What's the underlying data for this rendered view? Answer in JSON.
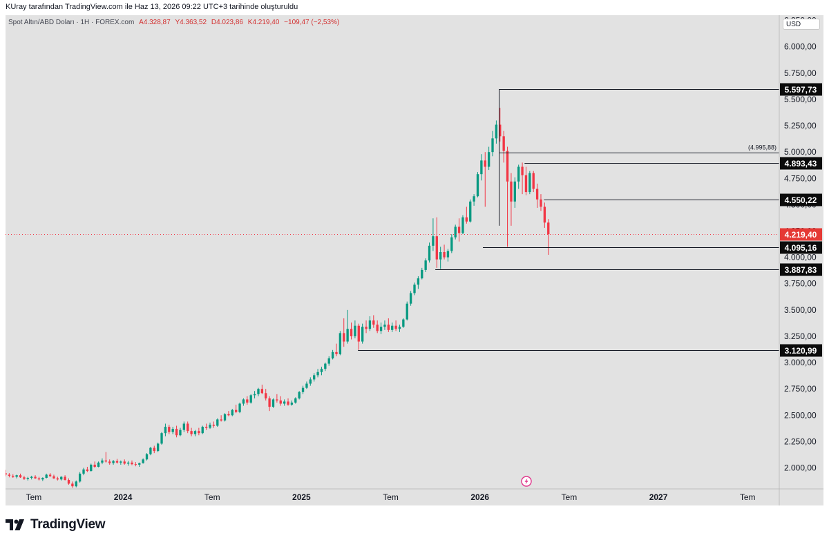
{
  "header": {
    "caption": "KUray tarafından TradingView.com ile Haz 13, 2026 09:22 UTC+3 tarihinde oluşturuldu"
  },
  "legend": {
    "symbol": "Spot Altın/ABD Doları · 1H · FOREX.com",
    "open": "A4.328,87",
    "high": "Y4.363,52",
    "low": "D4.023,86",
    "close": "K4.219,40",
    "change": "−109,47 (−2,53%)"
  },
  "currency_button": "USD",
  "brand": {
    "name": "TradingView",
    "icon": "tradingview-logo-icon"
  },
  "markers": {
    "icon": "lightning-event-icon"
  },
  "colors": {
    "up": "#089981",
    "down": "#f23645",
    "background": "#e2e2e2",
    "last_price_label": "#e53935",
    "level_label": "#0b0b0b"
  },
  "chart_data": {
    "type": "candlestick",
    "symbol": "Spot Altın/ABD Doları",
    "interval": "1H",
    "source": "FOREX.com",
    "y_axis": {
      "range": [
        1800,
        6300
      ],
      "ticks": [
        "6.250,00",
        "6.000,00",
        "5.750,00",
        "5.500,00",
        "5.250,00",
        "5.000,00",
        "4.750,00",
        "4.500,00",
        "4.250,00",
        "4.000,00",
        "3.750,00",
        "3.500,00",
        "3.250,00",
        "3.000,00",
        "2.750,00",
        "2.500,00",
        "2.250,00",
        "2.000,00"
      ],
      "tick_values": [
        6250,
        6000,
        5750,
        5500,
        5250,
        5000,
        4750,
        4500,
        4250,
        4000,
        3750,
        3500,
        3250,
        3000,
        2750,
        2500,
        2250,
        2000
      ]
    },
    "x_axis": {
      "labels": [
        "Tem",
        "2024",
        "Tem",
        "2025",
        "Tem",
        "2026",
        "Tem",
        "2027",
        "Tem"
      ],
      "label_months": [
        18,
        24,
        30,
        36,
        42,
        48,
        54,
        60,
        66
      ],
      "bold": [
        false,
        true,
        false,
        true,
        false,
        true,
        false,
        true,
        false
      ],
      "range_months": [
        16.1,
        71.1
      ]
    },
    "last_price": {
      "value": 4219.4,
      "label": "4.219,40"
    },
    "levels": [
      {
        "value": 5597.73,
        "label": "5.597,73",
        "from_month": 49.3
      },
      {
        "value": 4995.88,
        "label": "(4.995,88)",
        "from_month": 49.3,
        "annotation": true
      },
      {
        "value": 4893.43,
        "label": "4.893,43",
        "from_month": 51.0
      },
      {
        "value": 4550.22,
        "label": "4.550,22",
        "from_month": 52.3
      },
      {
        "value": 4095.16,
        "label": "4.095,16",
        "from_month": 48.2
      },
      {
        "value": 3887.83,
        "label": "3.887,83",
        "from_month": 45.0
      },
      {
        "value": 3120.99,
        "label": "3.120,99",
        "from_month": 39.8
      }
    ],
    "candles": [
      [
        16.1,
        1950,
        1980,
        1920,
        1935
      ],
      [
        16.35,
        1935,
        1950,
        1910,
        1925
      ],
      [
        16.6,
        1925,
        1940,
        1905,
        1915
      ],
      [
        16.85,
        1915,
        1935,
        1900,
        1930
      ],
      [
        17.1,
        1930,
        1945,
        1905,
        1910
      ],
      [
        17.35,
        1910,
        1925,
        1885,
        1895
      ],
      [
        17.6,
        1895,
        1915,
        1880,
        1905
      ],
      [
        17.85,
        1905,
        1925,
        1890,
        1915
      ],
      [
        18.1,
        1915,
        1930,
        1895,
        1900
      ],
      [
        18.35,
        1900,
        1915,
        1880,
        1890
      ],
      [
        18.6,
        1890,
        1910,
        1875,
        1905
      ],
      [
        18.85,
        1905,
        1945,
        1900,
        1935
      ],
      [
        19.1,
        1935,
        1950,
        1915,
        1920
      ],
      [
        19.35,
        1920,
        1935,
        1895,
        1900
      ],
      [
        19.6,
        1900,
        1915,
        1880,
        1890
      ],
      [
        19.85,
        1890,
        1920,
        1880,
        1915
      ],
      [
        20.1,
        1915,
        1930,
        1880,
        1885
      ],
      [
        20.35,
        1885,
        1900,
        1840,
        1850
      ],
      [
        20.6,
        1850,
        1870,
        1810,
        1825
      ],
      [
        20.85,
        1825,
        1880,
        1815,
        1870
      ],
      [
        21.1,
        1870,
        1960,
        1860,
        1945
      ],
      [
        21.35,
        1945,
        2000,
        1930,
        1985
      ],
      [
        21.6,
        1985,
        2010,
        1960,
        1970
      ],
      [
        21.85,
        1970,
        2040,
        1965,
        2030
      ],
      [
        22.1,
        2030,
        2060,
        2000,
        2010
      ],
      [
        22.35,
        2010,
        2060,
        2005,
        2050
      ],
      [
        22.6,
        2050,
        2090,
        2035,
        2070
      ],
      [
        22.85,
        2070,
        2150,
        2050,
        2060
      ],
      [
        23.1,
        2060,
        2080,
        2030,
        2045
      ],
      [
        23.35,
        2045,
        2075,
        2030,
        2065
      ],
      [
        23.6,
        2065,
        2085,
        2040,
        2050
      ],
      [
        23.85,
        2050,
        2070,
        2030,
        2060
      ],
      [
        24.1,
        2060,
        2080,
        2030,
        2040
      ],
      [
        24.35,
        2040,
        2065,
        2020,
        2050
      ],
      [
        24.6,
        2050,
        2070,
        2025,
        2035
      ],
      [
        24.85,
        2035,
        2055,
        2015,
        2030
      ],
      [
        25.1,
        2030,
        2050,
        2010,
        2045
      ],
      [
        25.35,
        2045,
        2090,
        2040,
        2080
      ],
      [
        25.6,
        2080,
        2140,
        2070,
        2130
      ],
      [
        25.85,
        2130,
        2200,
        2120,
        2190
      ],
      [
        26.1,
        2190,
        2210,
        2140,
        2160
      ],
      [
        26.35,
        2160,
        2240,
        2150,
        2230
      ],
      [
        26.6,
        2230,
        2340,
        2220,
        2330
      ],
      [
        26.85,
        2330,
        2420,
        2300,
        2390
      ],
      [
        27.1,
        2390,
        2410,
        2320,
        2340
      ],
      [
        27.35,
        2340,
        2390,
        2320,
        2370
      ],
      [
        27.6,
        2370,
        2400,
        2290,
        2310
      ],
      [
        27.85,
        2310,
        2380,
        2300,
        2360
      ],
      [
        28.1,
        2360,
        2440,
        2340,
        2420
      ],
      [
        28.35,
        2420,
        2440,
        2330,
        2350
      ],
      [
        28.6,
        2350,
        2380,
        2300,
        2320
      ],
      [
        28.85,
        2320,
        2360,
        2300,
        2350
      ],
      [
        29.1,
        2350,
        2380,
        2310,
        2330
      ],
      [
        29.35,
        2330,
        2400,
        2320,
        2390
      ],
      [
        29.6,
        2390,
        2420,
        2360,
        2380
      ],
      [
        29.85,
        2380,
        2430,
        2370,
        2410
      ],
      [
        30.1,
        2410,
        2440,
        2380,
        2400
      ],
      [
        30.35,
        2400,
        2470,
        2390,
        2460
      ],
      [
        30.6,
        2460,
        2500,
        2440,
        2450
      ],
      [
        30.85,
        2450,
        2520,
        2440,
        2510
      ],
      [
        31.1,
        2510,
        2540,
        2490,
        2500
      ],
      [
        31.35,
        2500,
        2560,
        2490,
        2550
      ],
      [
        31.6,
        2550,
        2600,
        2520,
        2530
      ],
      [
        31.85,
        2530,
        2620,
        2520,
        2610
      ],
      [
        32.1,
        2610,
        2660,
        2590,
        2650
      ],
      [
        32.35,
        2650,
        2680,
        2600,
        2620
      ],
      [
        32.6,
        2620,
        2700,
        2610,
        2690
      ],
      [
        32.85,
        2690,
        2730,
        2660,
        2700
      ],
      [
        33.1,
        2700,
        2760,
        2680,
        2750
      ],
      [
        33.35,
        2750,
        2790,
        2700,
        2710
      ],
      [
        33.6,
        2710,
        2750,
        2640,
        2660
      ],
      [
        33.85,
        2660,
        2680,
        2540,
        2580
      ],
      [
        34.1,
        2580,
        2660,
        2570,
        2650
      ],
      [
        34.35,
        2650,
        2700,
        2620,
        2640
      ],
      [
        34.6,
        2640,
        2680,
        2590,
        2610
      ],
      [
        34.85,
        2610,
        2650,
        2590,
        2630
      ],
      [
        35.1,
        2630,
        2660,
        2590,
        2600
      ],
      [
        35.35,
        2600,
        2640,
        2590,
        2620
      ],
      [
        35.6,
        2620,
        2670,
        2610,
        2660
      ],
      [
        35.85,
        2660,
        2730,
        2650,
        2720
      ],
      [
        36.1,
        2720,
        2780,
        2700,
        2760
      ],
      [
        36.35,
        2760,
        2820,
        2750,
        2800
      ],
      [
        36.6,
        2800,
        2860,
        2780,
        2840
      ],
      [
        36.85,
        2840,
        2900,
        2820,
        2880
      ],
      [
        37.1,
        2880,
        2940,
        2860,
        2910
      ],
      [
        37.35,
        2910,
        2960,
        2880,
        2940
      ],
      [
        37.6,
        2940,
        3000,
        2920,
        2990
      ],
      [
        37.85,
        2990,
        3060,
        2970,
        3040
      ],
      [
        38.1,
        3040,
        3120,
        3030,
        3100
      ],
      [
        38.35,
        3100,
        3180,
        3060,
        3080
      ],
      [
        38.6,
        3080,
        3300,
        3070,
        3280
      ],
      [
        38.85,
        3280,
        3420,
        3150,
        3200
      ],
      [
        39.1,
        3200,
        3500,
        3180,
        3320
      ],
      [
        39.35,
        3320,
        3380,
        3220,
        3250
      ],
      [
        39.6,
        3250,
        3400,
        3230,
        3350
      ],
      [
        39.85,
        3350,
        3370,
        3120,
        3200
      ],
      [
        40.1,
        3200,
        3370,
        3180,
        3340
      ],
      [
        40.35,
        3340,
        3400,
        3280,
        3320
      ],
      [
        40.6,
        3320,
        3440,
        3300,
        3400
      ],
      [
        40.85,
        3400,
        3450,
        3330,
        3360
      ],
      [
        41.1,
        3360,
        3400,
        3280,
        3300
      ],
      [
        41.35,
        3300,
        3380,
        3270,
        3340
      ],
      [
        41.6,
        3340,
        3400,
        3310,
        3360
      ],
      [
        41.85,
        3360,
        3420,
        3290,
        3310
      ],
      [
        42.1,
        3310,
        3380,
        3290,
        3350
      ],
      [
        42.35,
        3350,
        3400,
        3300,
        3320
      ],
      [
        42.6,
        3320,
        3360,
        3290,
        3340
      ],
      [
        42.85,
        3340,
        3420,
        3330,
        3410
      ],
      [
        43.1,
        3410,
        3580,
        3400,
        3560
      ],
      [
        43.35,
        3560,
        3680,
        3540,
        3660
      ],
      [
        43.6,
        3660,
        3760,
        3640,
        3740
      ],
      [
        43.85,
        3740,
        3820,
        3700,
        3800
      ],
      [
        44.1,
        3800,
        3900,
        3790,
        3880
      ],
      [
        44.35,
        3880,
        3990,
        3860,
        3970
      ],
      [
        44.6,
        3970,
        4140,
        3950,
        4110
      ],
      [
        44.85,
        4110,
        4370,
        4060,
        4200
      ],
      [
        45.1,
        4200,
        4380,
        3900,
        3980
      ],
      [
        45.35,
        3980,
        4100,
        3890,
        4050
      ],
      [
        45.6,
        4050,
        4120,
        3980,
        4000
      ],
      [
        45.85,
        4000,
        4080,
        3960,
        4060
      ],
      [
        46.1,
        4060,
        4220,
        4040,
        4190
      ],
      [
        46.35,
        4190,
        4310,
        4170,
        4290
      ],
      [
        46.6,
        4290,
        4370,
        4150,
        4230
      ],
      [
        46.85,
        4230,
        4400,
        4220,
        4380
      ],
      [
        47.1,
        4380,
        4480,
        4320,
        4340
      ],
      [
        47.35,
        4340,
        4550,
        4330,
        4530
      ],
      [
        47.6,
        4530,
        4600,
        4490,
        4580
      ],
      [
        47.85,
        4580,
        4810,
        4570,
        4790
      ],
      [
        48.1,
        4790,
        4980,
        4730,
        4920
      ],
      [
        48.35,
        4920,
        5000,
        4480,
        4860
      ],
      [
        48.6,
        4860,
        5050,
        4830,
        5000
      ],
      [
        48.85,
        5000,
        5200,
        4960,
        5130
      ],
      [
        49.1,
        5130,
        5300,
        5080,
        5260
      ],
      [
        49.35,
        5260,
        5420,
        5100,
        5150
      ],
      [
        49.6,
        5150,
        5200,
        4900,
        5010
      ],
      [
        49.85,
        5010,
        5050,
        4100,
        4720
      ],
      [
        50.1,
        4720,
        4800,
        4300,
        4530
      ],
      [
        50.35,
        4530,
        4760,
        4470,
        4720
      ],
      [
        50.6,
        4720,
        4880,
        4650,
        4860
      ],
      [
        50.85,
        4860,
        4900,
        4600,
        4780
      ],
      [
        51.1,
        4780,
        4860,
        4590,
        4620
      ],
      [
        51.35,
        4620,
        4820,
        4600,
        4800
      ],
      [
        51.6,
        4800,
        4820,
        4620,
        4650
      ],
      [
        51.85,
        4650,
        4700,
        4470,
        4550
      ],
      [
        52.1,
        4550,
        4600,
        4440,
        4480
      ],
      [
        52.35,
        4480,
        4520,
        4280,
        4330
      ],
      [
        52.6,
        4330,
        4363.52,
        4023.86,
        4219.4
      ]
    ]
  }
}
